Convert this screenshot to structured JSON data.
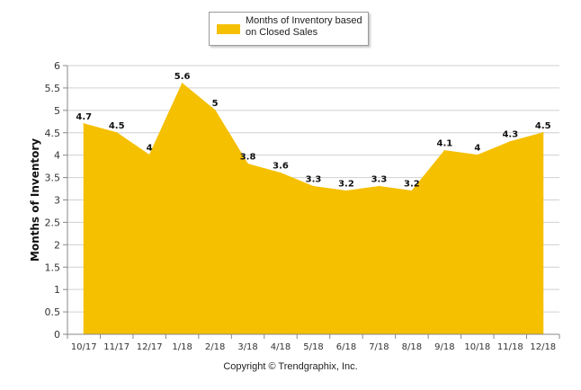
{
  "chart_data": {
    "type": "area",
    "categories": [
      "10/17",
      "11/17",
      "12/17",
      "1/18",
      "2/18",
      "3/18",
      "4/18",
      "5/18",
      "6/18",
      "7/18",
      "8/18",
      "9/18",
      "10/18",
      "11/18",
      "12/18"
    ],
    "series": [
      {
        "name": "Months of Inventory based on Closed Sales",
        "values": [
          4.7,
          4.5,
          4,
          5.6,
          5,
          3.8,
          3.6,
          3.3,
          3.2,
          3.3,
          3.2,
          4.1,
          4,
          4.3,
          4.5
        ],
        "labels": [
          "4.7",
          "4.5",
          "4",
          "5.6",
          "5",
          "3.8",
          "3.6",
          "3.3",
          "3.2",
          "3.3",
          "3.2",
          "4.1",
          "4",
          "4.3",
          "4.5"
        ],
        "color": "#f5c000"
      }
    ],
    "ylabel": "Months of Inventory",
    "xlabel": "",
    "ylim": [
      0,
      6
    ],
    "yticks": [
      "0",
      "0.5",
      "1",
      "1.5",
      "2",
      "2.5",
      "3",
      "3.5",
      "4",
      "4.5",
      "5",
      "5.5",
      "6"
    ],
    "grid": true,
    "legend_position": "top-center"
  },
  "legend": {
    "label": "Months of Inventory based on Closed Sales"
  },
  "footer": {
    "copyright": "Copyright © Trendgraphix, Inc."
  },
  "colors": {
    "area": "#f5c000",
    "grid": "#d0d0d0",
    "axis": "#888888"
  }
}
